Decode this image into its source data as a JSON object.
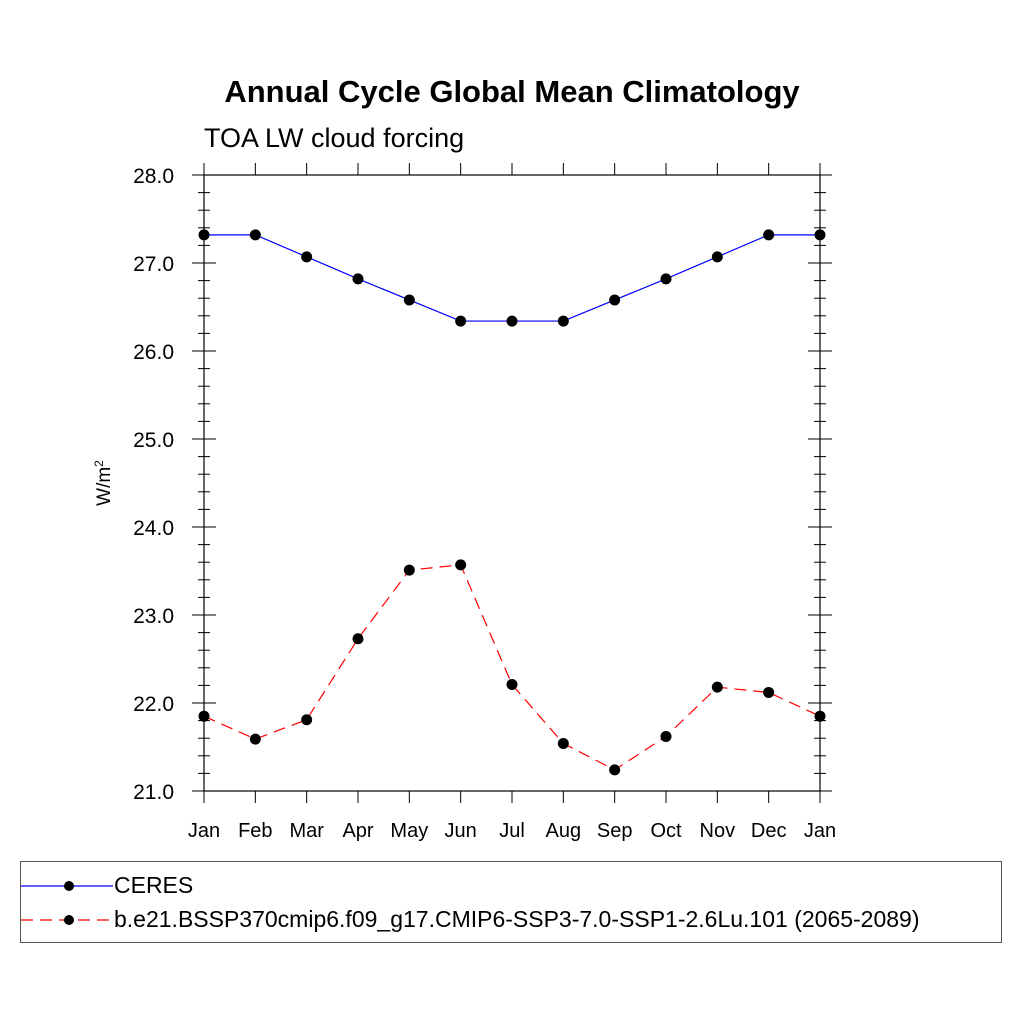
{
  "chart_data": {
    "type": "line",
    "title": "Annual Cycle Global Mean Climatology",
    "subtitle": "TOA LW cloud forcing",
    "ylabel_base": "W/m",
    "ylabel_sup": "2",
    "xlabel": "",
    "categories": [
      "Jan",
      "Feb",
      "Mar",
      "Apr",
      "May",
      "Jun",
      "Jul",
      "Aug",
      "Sep",
      "Oct",
      "Nov",
      "Dec",
      "Jan"
    ],
    "ylim": [
      21.0,
      28.0
    ],
    "yticks": [
      "21.0",
      "22.0",
      "23.0",
      "24.0",
      "25.0",
      "26.0",
      "27.0",
      "28.0"
    ],
    "legend_position": "bottom",
    "series": [
      {
        "name": "CERES",
        "color": "#0000ff",
        "dash": "solid",
        "values": [
          27.32,
          27.32,
          27.07,
          26.82,
          26.58,
          26.34,
          26.34,
          26.34,
          26.58,
          26.82,
          27.07,
          27.32,
          27.32
        ]
      },
      {
        "name": "b.e21.BSSP370cmip6.f09_g17.CMIP6-SSP3-7.0-SSP1-2.6Lu.101 (2065-2089)",
        "color": "#ff0000",
        "dash": "dashed",
        "values": [
          21.85,
          21.59,
          21.81,
          22.73,
          23.51,
          23.57,
          22.21,
          21.54,
          21.24,
          21.62,
          22.18,
          22.12,
          21.85
        ]
      }
    ]
  }
}
